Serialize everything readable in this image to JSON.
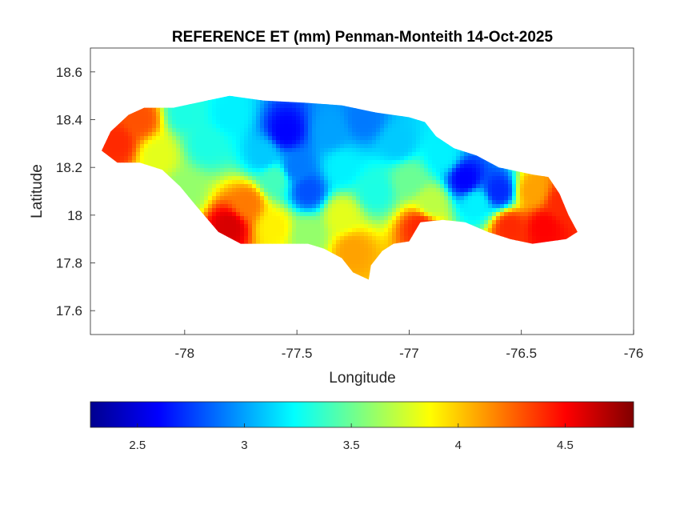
{
  "chart_data": {
    "type": "heatmap",
    "title": "REFERENCE ET (mm) Penman-Monteith 14-Oct-2025",
    "xlabel": "Longitude",
    "ylabel": "Latitude",
    "xlim": [
      -78.42,
      -76.0
    ],
    "ylim": [
      17.5,
      18.7
    ],
    "xticks": [
      -78,
      -77.5,
      -77,
      -76.5,
      -76
    ],
    "xtick_labels": [
      "-78",
      "-77.5",
      "-77",
      "-76.5",
      "-76"
    ],
    "yticks": [
      17.6,
      17.8,
      18.0,
      18.2,
      18.4,
      18.6
    ],
    "ytick_labels": [
      "17.6",
      "17.8",
      "18",
      "18.2",
      "18.4",
      "18.6"
    ],
    "grid": false,
    "colormap": "jet",
    "colorbar": {
      "orientation": "horizontal",
      "location": "below",
      "range": [
        2.28,
        4.82
      ],
      "ticks": [
        2.5,
        3,
        3.5,
        4,
        4.5
      ],
      "tick_labels": [
        "2.5",
        "3",
        "3.5",
        "4",
        "4.5"
      ]
    },
    "island_outline_lonlat": [
      [
        -78.37,
        18.27
      ],
      [
        -78.33,
        18.35
      ],
      [
        -78.25,
        18.42
      ],
      [
        -78.18,
        18.45
      ],
      [
        -78.05,
        18.45
      ],
      [
        -77.95,
        18.47
      ],
      [
        -77.8,
        18.5
      ],
      [
        -77.65,
        18.48
      ],
      [
        -77.45,
        18.47
      ],
      [
        -77.3,
        18.46
      ],
      [
        -77.15,
        18.43
      ],
      [
        -77.0,
        18.41
      ],
      [
        -76.93,
        18.39
      ],
      [
        -76.88,
        18.33
      ],
      [
        -76.8,
        18.28
      ],
      [
        -76.7,
        18.25
      ],
      [
        -76.6,
        18.2
      ],
      [
        -76.45,
        18.17
      ],
      [
        -76.38,
        18.16
      ],
      [
        -76.33,
        18.09
      ],
      [
        -76.29,
        18.0
      ],
      [
        -76.25,
        17.93
      ],
      [
        -76.3,
        17.9
      ],
      [
        -76.45,
        17.88
      ],
      [
        -76.55,
        17.9
      ],
      [
        -76.65,
        17.93
      ],
      [
        -76.75,
        17.97
      ],
      [
        -76.85,
        17.98
      ],
      [
        -76.95,
        17.97
      ],
      [
        -77.0,
        17.89
      ],
      [
        -77.07,
        17.88
      ],
      [
        -77.12,
        17.85
      ],
      [
        -77.17,
        17.79
      ],
      [
        -77.18,
        17.73
      ],
      [
        -77.25,
        17.76
      ],
      [
        -77.3,
        17.82
      ],
      [
        -77.38,
        17.86
      ],
      [
        -77.45,
        17.88
      ],
      [
        -77.55,
        17.88
      ],
      [
        -77.65,
        17.88
      ],
      [
        -77.75,
        17.88
      ],
      [
        -77.85,
        17.93
      ],
      [
        -77.95,
        18.04
      ],
      [
        -78.02,
        18.12
      ],
      [
        -78.1,
        18.19
      ],
      [
        -78.2,
        18.22
      ],
      [
        -78.3,
        18.22
      ]
    ],
    "value_field_anchors": [
      {
        "lon": -78.3,
        "lat": 18.3,
        "value": 4.4
      },
      {
        "lon": -78.2,
        "lat": 18.4,
        "value": 4.3
      },
      {
        "lon": -78.12,
        "lat": 18.25,
        "value": 3.8
      },
      {
        "lon": -78.0,
        "lat": 18.43,
        "value": 3.3
      },
      {
        "lon": -78.0,
        "lat": 18.1,
        "value": 3.6
      },
      {
        "lon": -77.9,
        "lat": 18.3,
        "value": 3.3
      },
      {
        "lon": -77.8,
        "lat": 18.42,
        "value": 3.2
      },
      {
        "lon": -77.8,
        "lat": 17.95,
        "value": 4.6
      },
      {
        "lon": -77.72,
        "lat": 18.05,
        "value": 4.2
      },
      {
        "lon": -77.65,
        "lat": 18.25,
        "value": 3.1
      },
      {
        "lon": -77.6,
        "lat": 18.15,
        "value": 3.4
      },
      {
        "lon": -77.6,
        "lat": 17.95,
        "value": 3.9
      },
      {
        "lon": -77.55,
        "lat": 18.35,
        "value": 2.6
      },
      {
        "lon": -77.5,
        "lat": 18.2,
        "value": 2.9
      },
      {
        "lon": -77.45,
        "lat": 18.1,
        "value": 2.8
      },
      {
        "lon": -77.45,
        "lat": 17.92,
        "value": 3.6
      },
      {
        "lon": -77.35,
        "lat": 18.35,
        "value": 3.0
      },
      {
        "lon": -77.3,
        "lat": 18.2,
        "value": 3.2
      },
      {
        "lon": -77.3,
        "lat": 18.0,
        "value": 3.8
      },
      {
        "lon": -77.25,
        "lat": 17.85,
        "value": 4.1
      },
      {
        "lon": -77.2,
        "lat": 18.4,
        "value": 2.9
      },
      {
        "lon": -77.15,
        "lat": 18.1,
        "value": 3.3
      },
      {
        "lon": -77.05,
        "lat": 18.3,
        "value": 3.1
      },
      {
        "lon": -77.0,
        "lat": 18.15,
        "value": 3.5
      },
      {
        "lon": -76.95,
        "lat": 17.95,
        "value": 4.4
      },
      {
        "lon": -76.9,
        "lat": 18.05,
        "value": 3.7
      },
      {
        "lon": -76.85,
        "lat": 18.25,
        "value": 3.2
      },
      {
        "lon": -76.75,
        "lat": 18.15,
        "value": 2.6
      },
      {
        "lon": -76.7,
        "lat": 18.05,
        "value": 3.2
      },
      {
        "lon": -76.6,
        "lat": 18.1,
        "value": 2.7
      },
      {
        "lon": -76.55,
        "lat": 17.95,
        "value": 4.4
      },
      {
        "lon": -76.45,
        "lat": 18.1,
        "value": 4.1
      },
      {
        "lon": -76.4,
        "lat": 17.95,
        "value": 4.5
      },
      {
        "lon": -76.32,
        "lat": 18.05,
        "value": 4.4
      }
    ]
  }
}
